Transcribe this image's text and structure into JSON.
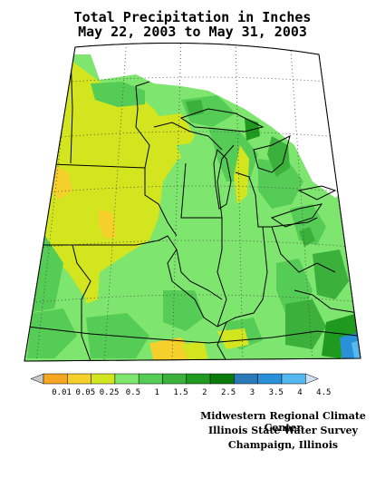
{
  "title_line1": "Total Precipitation in Inches",
  "title_line2": "May 22, 2003 to May 31, 2003",
  "legend": {
    "labels": [
      "0.01",
      "0.05",
      "0.25",
      "0.5",
      "1",
      "1.5",
      "2",
      "2.5",
      "3",
      "3.5",
      "4",
      "4.5"
    ],
    "colors": [
      "#c8c8c8",
      "#f5a623",
      "#f5d02b",
      "#d2e51e",
      "#7ee56e",
      "#55cc55",
      "#3bb03b",
      "#1f9a1f",
      "#0a7a0a",
      "#2a7ab8",
      "#2a90d8",
      "#55b8f0",
      "#cfe0f5"
    ]
  },
  "credits": {
    "line1": "Midwestern Regional Climate Center",
    "line2": "Illinois State Water Survey",
    "line3": "Champaign, Illinois"
  },
  "map_colors": {
    "light_green": "#7ee56e",
    "green": "#55cc55",
    "mid_green": "#3bb03b",
    "dark_green": "#1f9a1f",
    "yellow_green": "#d2e51e",
    "yellow": "#f5d02b",
    "blue": "#2a90d8"
  }
}
